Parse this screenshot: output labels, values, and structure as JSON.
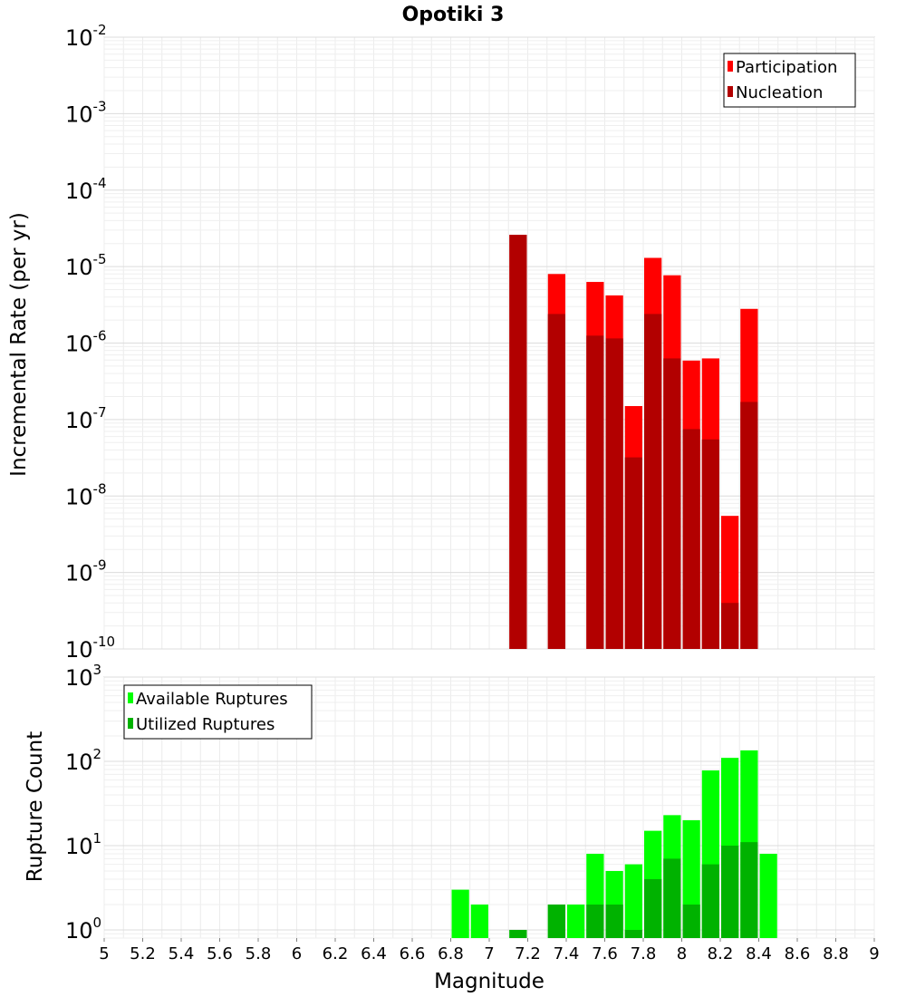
{
  "chart_data": [
    {
      "type": "bar",
      "title": "Opotiki 3",
      "xlabel": "",
      "ylabel": "Incremental Rate (per yr)",
      "yscale": "log",
      "ylim": [
        1e-10,
        0.01
      ],
      "xlim": [
        5,
        9
      ],
      "ytick_exponents": [
        -10,
        -9,
        -8,
        -7,
        -6,
        -5,
        -4,
        -3,
        -2
      ],
      "grid": true,
      "legend_position": "top-right",
      "bar_width": 0.1,
      "series": [
        {
          "name": "Participation",
          "color": "#ff0000",
          "x": [
            7.15,
            7.35,
            7.55,
            7.65,
            7.75,
            7.85,
            7.95,
            8.05,
            8.15,
            8.25,
            8.35
          ],
          "values": [
            2.6e-05,
            8e-06,
            6.3e-06,
            4.2e-06,
            1.5e-07,
            1.3e-05,
            7.7e-06,
            5.9e-07,
            6.3e-07,
            5.5e-09,
            2.8e-06
          ]
        },
        {
          "name": "Nucleation",
          "color": "#b20000",
          "x": [
            7.15,
            7.35,
            7.55,
            7.65,
            7.75,
            7.85,
            7.95,
            8.05,
            8.15,
            8.25,
            8.35
          ],
          "values": [
            2.6e-05,
            2.4e-06,
            1.25e-06,
            1.15e-06,
            3.2e-08,
            2.4e-06,
            6.3e-07,
            7.5e-08,
            5.5e-08,
            4e-10,
            1.7e-07
          ]
        }
      ]
    },
    {
      "type": "bar",
      "title": "",
      "xlabel": "Magnitude",
      "ylabel": "Rupture Count",
      "yscale": "log",
      "ylim": [
        0.8,
        1000
      ],
      "xlim": [
        5,
        9
      ],
      "ytick_exponents": [
        0,
        1,
        2,
        3
      ],
      "xticks": [
        "5",
        "5.2",
        "5.4",
        "5.6",
        "5.8",
        "6",
        "6.2",
        "6.4",
        "6.6",
        "6.8",
        "7",
        "7.2",
        "7.4",
        "7.6",
        "7.8",
        "8",
        "8.2",
        "8.4",
        "8.6",
        "8.8",
        "9"
      ],
      "grid": true,
      "legend_position": "top-left",
      "bar_width": 0.1,
      "series": [
        {
          "name": "Available Ruptures",
          "color": "#00ff00",
          "x": [
            6.85,
            6.95,
            7.15,
            7.35,
            7.45,
            7.55,
            7.65,
            7.75,
            7.85,
            7.95,
            8.05,
            8.15,
            8.25,
            8.35,
            8.45
          ],
          "values": [
            3,
            2,
            1,
            2,
            2,
            8,
            5,
            6,
            15,
            23,
            20,
            78,
            110,
            135,
            8
          ]
        },
        {
          "name": "Utilized Ruptures",
          "color": "#00b200",
          "x": [
            7.15,
            7.35,
            7.55,
            7.65,
            7.75,
            7.85,
            7.95,
            8.05,
            8.15,
            8.25,
            8.35
          ],
          "values": [
            1,
            2,
            2,
            2,
            1,
            4,
            7,
            2,
            6,
            10,
            11
          ]
        }
      ]
    }
  ]
}
